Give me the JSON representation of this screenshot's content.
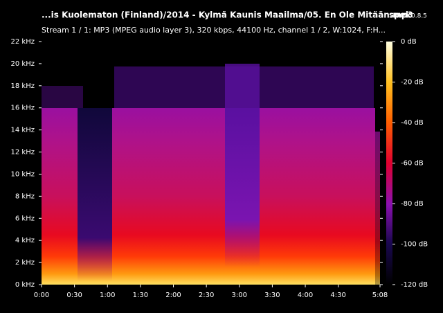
{
  "chart_data": {
    "type": "spectrogram",
    "title": "...is Kuolematon (Finland)/2014 - Kylmä Kaunis Maailma/05. En Ole Mitään.mp3",
    "app_name": "spek",
    "app_version": "0.8.5",
    "subtitle": "Stream 1 / 1: MP3 (MPEG audio layer 3), 320 kbps, 44100 Hz, channel 1 / 2, W:1024, F:H...",
    "xlim": [
      0,
      308
    ],
    "xticks": [
      {
        "value": 0,
        "label": "0:00"
      },
      {
        "value": 30,
        "label": "0:30"
      },
      {
        "value": 60,
        "label": "1:00"
      },
      {
        "value": 90,
        "label": "1:30"
      },
      {
        "value": 120,
        "label": "2:00"
      },
      {
        "value": 150,
        "label": "2:30"
      },
      {
        "value": 180,
        "label": "3:00"
      },
      {
        "value": 210,
        "label": "3:30"
      },
      {
        "value": 240,
        "label": "4:00"
      },
      {
        "value": 270,
        "label": "4:30"
      },
      {
        "value": 308,
        "label": "5:08"
      }
    ],
    "ylim": [
      0,
      22
    ],
    "yticks": [
      {
        "value": 0,
        "label": "0 kHz"
      },
      {
        "value": 2,
        "label": "2 kHz"
      },
      {
        "value": 4,
        "label": "4 kHz"
      },
      {
        "value": 6,
        "label": "6 kHz"
      },
      {
        "value": 8,
        "label": "8 kHz"
      },
      {
        "value": 10,
        "label": "10 kHz"
      },
      {
        "value": 12,
        "label": "12 kHz"
      },
      {
        "value": 14,
        "label": "14 kHz"
      },
      {
        "value": 16,
        "label": "16 kHz"
      },
      {
        "value": 18,
        "label": "18 kHz"
      },
      {
        "value": 20,
        "label": "20 kHz"
      },
      {
        "value": 22,
        "label": "22 kHz"
      }
    ],
    "colorbar_lim": [
      -120,
      0
    ],
    "colorbar_ticks": [
      {
        "value": 0,
        "label": "0 dB"
      },
      {
        "value": -20,
        "label": "-20 dB"
      },
      {
        "value": -40,
        "label": "-40 dB"
      },
      {
        "value": -60,
        "label": "-60 dB"
      },
      {
        "value": -80,
        "label": "-80 dB"
      },
      {
        "value": -100,
        "label": "-100 dB"
      },
      {
        "value": -120,
        "label": "-120 dB"
      }
    ]
  }
}
